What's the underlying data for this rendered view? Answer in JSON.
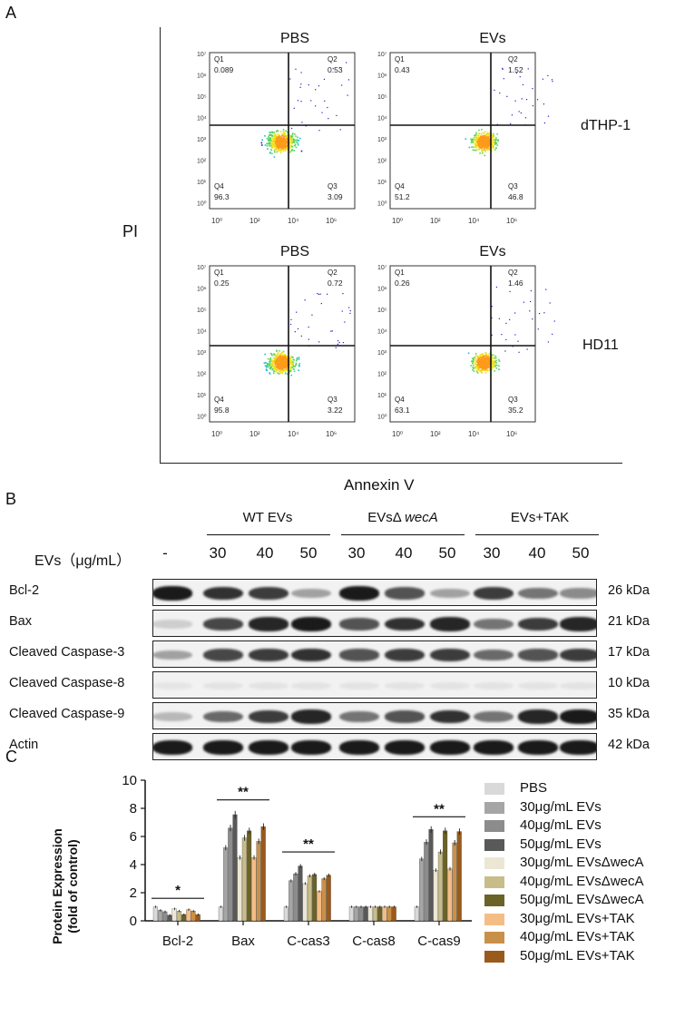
{
  "panel_a": {
    "letter": "A",
    "y_axis_label": "PI",
    "x_axis_label": "Annexin V",
    "col_titles": [
      "PBS",
      "EVs"
    ],
    "row_labels": [
      "dTHP-1",
      "HD11"
    ],
    "plots": [
      {
        "q1": "0.089",
        "q2": "0.53",
        "q3": "3.09",
        "q4": "96.3"
      },
      {
        "q1": "0.43",
        "q2": "1.52",
        "q3": "46.8",
        "q4": "51.2"
      },
      {
        "q1": "0.25",
        "q2": "0.72",
        "q3": "3.22",
        "q4": "95.8"
      },
      {
        "q1": "0.26",
        "q2": "1.46",
        "q3": "35.2",
        "q4": "63.1"
      }
    ],
    "quadrant_names": {
      "q1": "Q1",
      "q2": "Q2",
      "q3": "Q3",
      "q4": "Q4"
    }
  },
  "panel_b": {
    "letter": "B",
    "groups": [
      "WT EVs",
      "EVsΔ",
      "wecA",
      "EVs+TAK"
    ],
    "conc_header": "EVs（μg/mL）",
    "concs": [
      "-",
      "30",
      "40",
      "50",
      "30",
      "40",
      "50",
      "30",
      "40",
      "50"
    ],
    "rows": [
      {
        "name": "Bcl-2",
        "kda": "26 kDa"
      },
      {
        "name": "Bax",
        "kda": "21 kDa"
      },
      {
        "name": "Cleaved Caspase-3",
        "kda": "17 kDa"
      },
      {
        "name": "Cleaved Caspase-8",
        "kda": "10 kDa"
      },
      {
        "name": "Cleaved Caspase-9",
        "kda": "35 kDa"
      },
      {
        "name": "Actin",
        "kda": "42 kDa"
      }
    ]
  },
  "panel_c": {
    "letter": "C",
    "sig_labels": [
      "*",
      "**",
      "**",
      "**"
    ]
  },
  "chart_data": {
    "type": "bar",
    "ylabel": "Protein Expression\n(fold of control)",
    "ylabel_line1": "Protein Expression",
    "ylabel_line2": "(fold of control)",
    "ylim": [
      0,
      10
    ],
    "yticks": [
      "0",
      "2",
      "4",
      "6",
      "8",
      "10"
    ],
    "categories": [
      "Bcl-2",
      "Bax",
      "C-cas3",
      "C-cas8",
      "C-cas9"
    ],
    "series": [
      {
        "name": "PBS",
        "color": "#d9d9d9",
        "values": [
          1.0,
          1.0,
          1.0,
          1.0,
          1.0
        ]
      },
      {
        "name": "30μg/mL EVs",
        "color": "#a6a6a6",
        "values": [
          0.75,
          5.2,
          2.85,
          1.0,
          4.4
        ]
      },
      {
        "name": "40μg/mL EVs",
        "color": "#8c8c8c",
        "values": [
          0.65,
          6.6,
          3.35,
          1.0,
          5.6
        ]
      },
      {
        "name": "50μg/mL EVs",
        "color": "#595959",
        "values": [
          0.4,
          7.55,
          3.9,
          1.0,
          6.5
        ]
      },
      {
        "name": "30μg/mL EVsΔwecA",
        "color": "#ece7d4",
        "values": [
          0.85,
          4.5,
          2.65,
          1.0,
          3.6
        ]
      },
      {
        "name": "40μg/mL EVsΔwecA",
        "color": "#c8bd8a",
        "values": [
          0.7,
          5.9,
          3.2,
          1.0,
          4.9
        ]
      },
      {
        "name": "50μg/mL EVsΔwecA",
        "color": "#6b6227",
        "values": [
          0.45,
          6.4,
          3.3,
          1.0,
          6.4
        ]
      },
      {
        "name": "30μg/mL EVs+TAK",
        "color": "#f4bd86",
        "values": [
          0.8,
          4.5,
          2.1,
          1.0,
          3.7
        ]
      },
      {
        "name": "40μg/mL EVs+TAK",
        "color": "#c9904a",
        "values": [
          0.7,
          5.65,
          3.0,
          1.0,
          5.55
        ]
      },
      {
        "name": "50μg/mL EVs+TAK",
        "color": "#9a5a1c",
        "values": [
          0.45,
          6.7,
          3.25,
          1.0,
          6.35
        ]
      }
    ]
  }
}
